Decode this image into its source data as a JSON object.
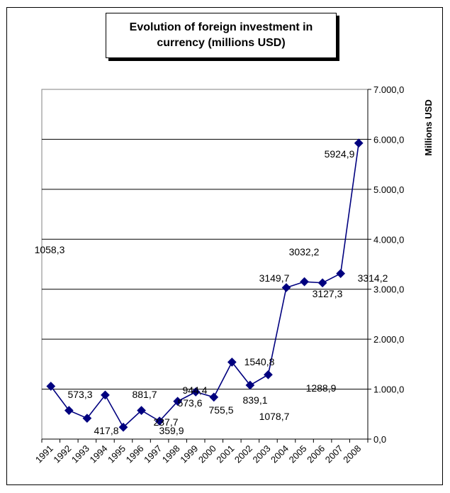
{
  "chart_data": {
    "type": "line",
    "title": "Evolution of foreign investment in currency (millions USD)",
    "xlabel": "",
    "ylabel": "Millions USD",
    "ylim": [
      0,
      7000
    ],
    "y_ticks": [
      "0,0",
      "1.000,0",
      "2.000,0",
      "3.000,0",
      "4.000,0",
      "5.000,0",
      "6.000,0",
      "7.000,0"
    ],
    "grid": true,
    "legend": "none",
    "categories": [
      "1991",
      "1992",
      "1993",
      "1994",
      "1995",
      "1996",
      "1997",
      "1998",
      "1999",
      "2000",
      "2001",
      "2002",
      "2003",
      "2004",
      "2005",
      "2006",
      "2007",
      "2008"
    ],
    "series": [
      {
        "color": "#00007f",
        "values": [
          1058.3,
          573.3,
          417.8,
          881.7,
          237.7,
          573.6,
          359.9,
          755.5,
          944.4,
          839.1,
          1540.8,
          1078.7,
          1288.9,
          3032.2,
          3149.7,
          3127.3,
          3314.2,
          5924.9
        ],
        "data_labels": [
          "1058,3",
          "573,3",
          "417,8",
          "881,7",
          "237,7",
          "573,6",
          "359,9",
          "755,5",
          "944,4",
          "839,1",
          "1540,8",
          "1078,7",
          "1288,9",
          "3032,2",
          "3149,7",
          "3127,3",
          "3314,2",
          "5924,9"
        ]
      }
    ]
  }
}
